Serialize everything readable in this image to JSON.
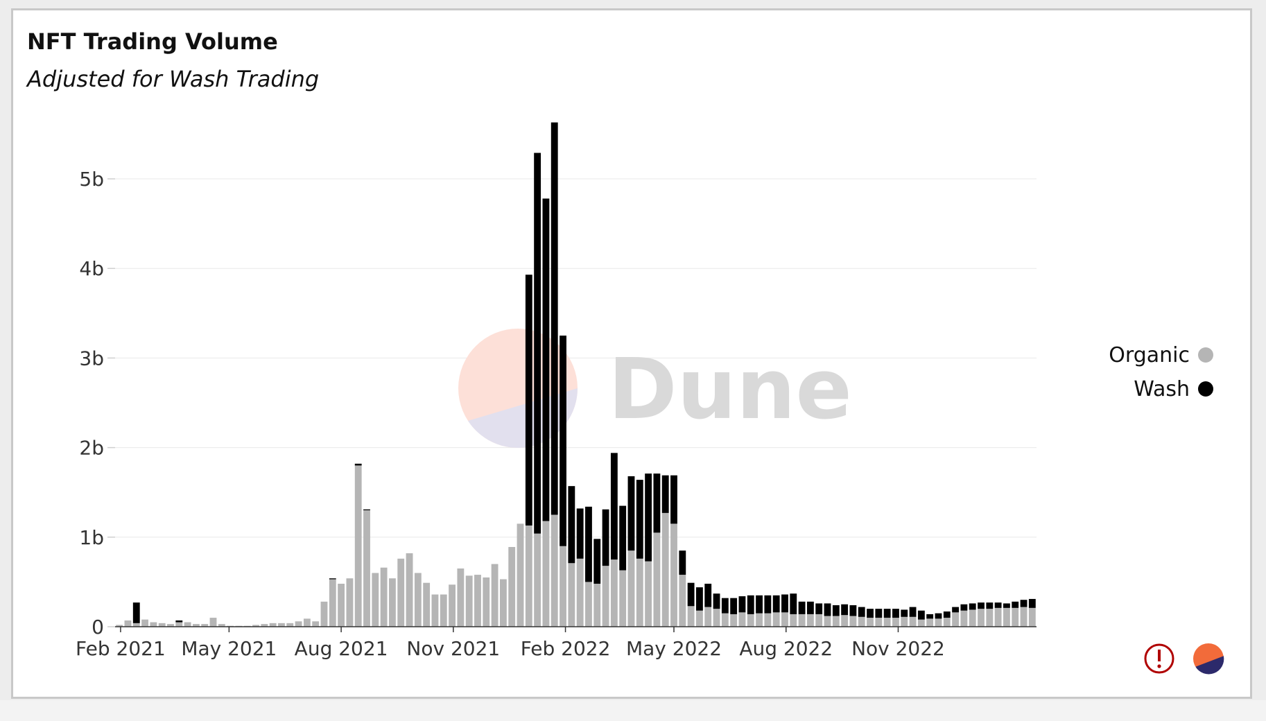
{
  "header": {
    "title": "NFT Trading Volume",
    "subtitle": "Adjusted for Wash Trading"
  },
  "watermark": {
    "text": "Dune"
  },
  "icons": {
    "alert": "exclamation-circle-icon",
    "logo": "dune-logo-icon"
  },
  "colors": {
    "organic": "#b5b5b5",
    "wash": "#000000",
    "grid": "#e8e8e8",
    "alert": "#b00000",
    "logo_top": "#f26b3a",
    "logo_bottom": "#2c2a6b"
  },
  "chart_data": {
    "type": "bar",
    "stacked": true,
    "interval": "weekly",
    "x_start": "2021-01-31",
    "x_ticks": [
      "Feb 2021",
      "May 2021",
      "Aug 2021",
      "Nov 2021",
      "Feb 2022",
      "May 2022",
      "Aug 2022",
      "Nov 2022"
    ],
    "y_ticks": [
      "0",
      "1b",
      "2b",
      "3b",
      "4b",
      "5b"
    ],
    "ylim": [
      0,
      5600000000
    ],
    "grid": true,
    "legend_position": "right",
    "series": [
      {
        "name": "Organic",
        "color": "#b5b5b5",
        "values": [
          0.02,
          0.07,
          0.04,
          0.08,
          0.05,
          0.04,
          0.03,
          0.05,
          0.05,
          0.03,
          0.03,
          0.1,
          0.03,
          0.01,
          0.01,
          0.01,
          0.02,
          0.03,
          0.04,
          0.04,
          0.04,
          0.06,
          0.09,
          0.06,
          0.28,
          0.53,
          0.48,
          0.54,
          1.8,
          1.3,
          0.6,
          0.66,
          0.54,
          0.76,
          0.82,
          0.6,
          0.49,
          0.36,
          0.36,
          0.47,
          0.65,
          0.57,
          0.58,
          0.55,
          0.7,
          0.53,
          0.89,
          1.15,
          1.13,
          1.04,
          1.18,
          1.25,
          0.9,
          0.71,
          0.76,
          0.5,
          0.48,
          0.68,
          0.75,
          0.63,
          0.85,
          0.76,
          0.73,
          1.05,
          1.27,
          1.15,
          0.58,
          0.23,
          0.18,
          0.22,
          0.2,
          0.15,
          0.14,
          0.16,
          0.14,
          0.15,
          0.15,
          0.16,
          0.16,
          0.14,
          0.14,
          0.14,
          0.14,
          0.12,
          0.12,
          0.13,
          0.12,
          0.11,
          0.1,
          0.1,
          0.1,
          0.1,
          0.11,
          0.11,
          0.08,
          0.09,
          0.09,
          0.1,
          0.16,
          0.18,
          0.19,
          0.2,
          0.2,
          0.21,
          0.21,
          0.21,
          0.22,
          0.21
        ]
      },
      {
        "name": "Wash",
        "color": "#000000",
        "values": [
          0,
          0,
          0.23,
          0,
          0,
          0,
          0,
          0.02,
          0,
          0,
          0,
          0,
          0,
          0,
          0,
          0,
          0,
          0,
          0,
          0,
          0,
          0,
          0,
          0,
          0,
          0.01,
          0,
          0,
          0.02,
          0.01,
          0,
          0,
          0,
          0,
          0,
          0,
          0,
          0,
          0,
          0,
          0,
          0,
          0,
          0,
          0,
          0,
          0,
          0,
          2.8,
          4.25,
          3.6,
          4.38,
          2.35,
          0.86,
          0.56,
          0.84,
          0.5,
          0.63,
          1.19,
          0.72,
          0.83,
          0.88,
          0.98,
          0.66,
          0.42,
          0.54,
          0.27,
          0.26,
          0.26,
          0.26,
          0.17,
          0.17,
          0.18,
          0.18,
          0.21,
          0.2,
          0.2,
          0.19,
          0.2,
          0.23,
          0.14,
          0.14,
          0.12,
          0.14,
          0.12,
          0.12,
          0.12,
          0.11,
          0.1,
          0.1,
          0.1,
          0.1,
          0.08,
          0.11,
          0.1,
          0.05,
          0.06,
          0.07,
          0.06,
          0.07,
          0.07,
          0.07,
          0.07,
          0.06,
          0.05,
          0.07,
          0.08,
          0.1
        ]
      }
    ]
  },
  "legend": [
    {
      "label": "Organic",
      "color": "#b5b5b5"
    },
    {
      "label": "Wash",
      "color": "#000000"
    }
  ]
}
